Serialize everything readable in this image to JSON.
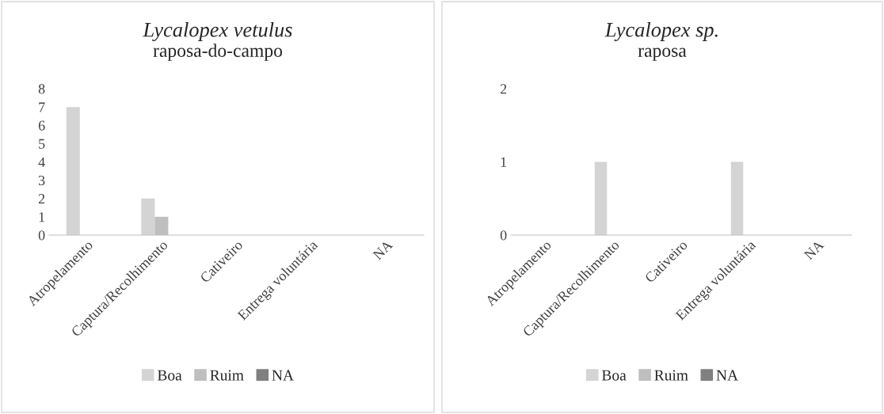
{
  "chart_data": [
    {
      "type": "bar",
      "title": "Lycalopex vetulus",
      "subtitle": "raposa-do-campo",
      "categories": [
        "Atropelamento",
        "Captura/Recolhimento",
        "Cativeiro",
        "Entrega voluntária",
        "NA"
      ],
      "series": [
        {
          "name": "Boa",
          "color": "#d4d4d4",
          "values": [
            7,
            2,
            0,
            0,
            0
          ]
        },
        {
          "name": "Ruim",
          "color": "#bfbfbf",
          "values": [
            0,
            1,
            0,
            0,
            0
          ]
        },
        {
          "name": "NA",
          "color": "#808080",
          "values": [
            0,
            0,
            0,
            0,
            0
          ]
        }
      ],
      "ylim": [
        0,
        8
      ],
      "yticks": [
        0,
        1,
        2,
        3,
        4,
        5,
        6,
        7,
        8
      ],
      "grid": false,
      "legend": "bottom"
    },
    {
      "type": "bar",
      "title": "Lycalopex sp.",
      "subtitle": "raposa",
      "categories": [
        "Atropelamento",
        "Captura/Recolhimento",
        "Cativeiro",
        "Entrega voluntária",
        "NA"
      ],
      "series": [
        {
          "name": "Boa",
          "color": "#d4d4d4",
          "values": [
            0,
            1,
            0,
            1,
            0
          ]
        },
        {
          "name": "Ruim",
          "color": "#bfbfbf",
          "values": [
            0,
            0,
            0,
            0,
            0
          ]
        },
        {
          "name": "NA",
          "color": "#808080",
          "values": [
            0,
            0,
            0,
            0,
            0
          ]
        }
      ],
      "ylim": [
        0,
        2
      ],
      "yticks": [
        0,
        1,
        2
      ],
      "grid": false,
      "legend": "bottom"
    }
  ]
}
